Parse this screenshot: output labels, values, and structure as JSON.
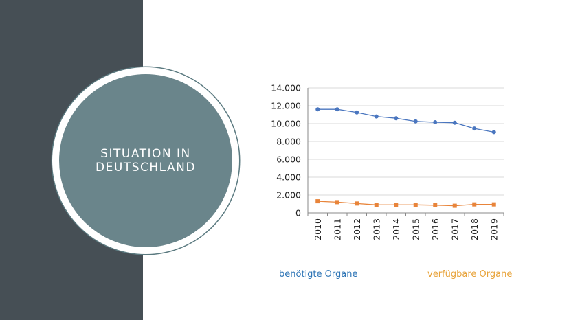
{
  "slide": {
    "title_line1": "SITUATION IN",
    "title_line2": "DEUTSCHLAND"
  },
  "colors": {
    "panel": "#464f55",
    "circle": "#6a858b",
    "series_blue": "#4a76bf",
    "series_orange": "#e8843a",
    "legend_blue": "#2e75b6",
    "legend_orange": "#e8a33a"
  },
  "chart_data": {
    "type": "line",
    "x": [
      "2010",
      "2011",
      "2012",
      "2013",
      "2014",
      "2015",
      "2016",
      "2017",
      "2018",
      "2019"
    ],
    "ylim": [
      0,
      14000
    ],
    "yticks": [
      "0",
      "2.000",
      "4.000",
      "6.000",
      "8.000",
      "10.000",
      "12.000",
      "14.000"
    ],
    "grid": true,
    "legend": "bottom",
    "series": [
      {
        "name": "benötigte Organe",
        "values": [
          11600,
          11600,
          11250,
          10800,
          10600,
          10250,
          10150,
          10100,
          9450,
          9050
        ]
      },
      {
        "name": "verfügbare Organe",
        "values": [
          1300,
          1200,
          1050,
          900,
          900,
          900,
          860,
          800,
          950,
          950
        ]
      }
    ]
  }
}
